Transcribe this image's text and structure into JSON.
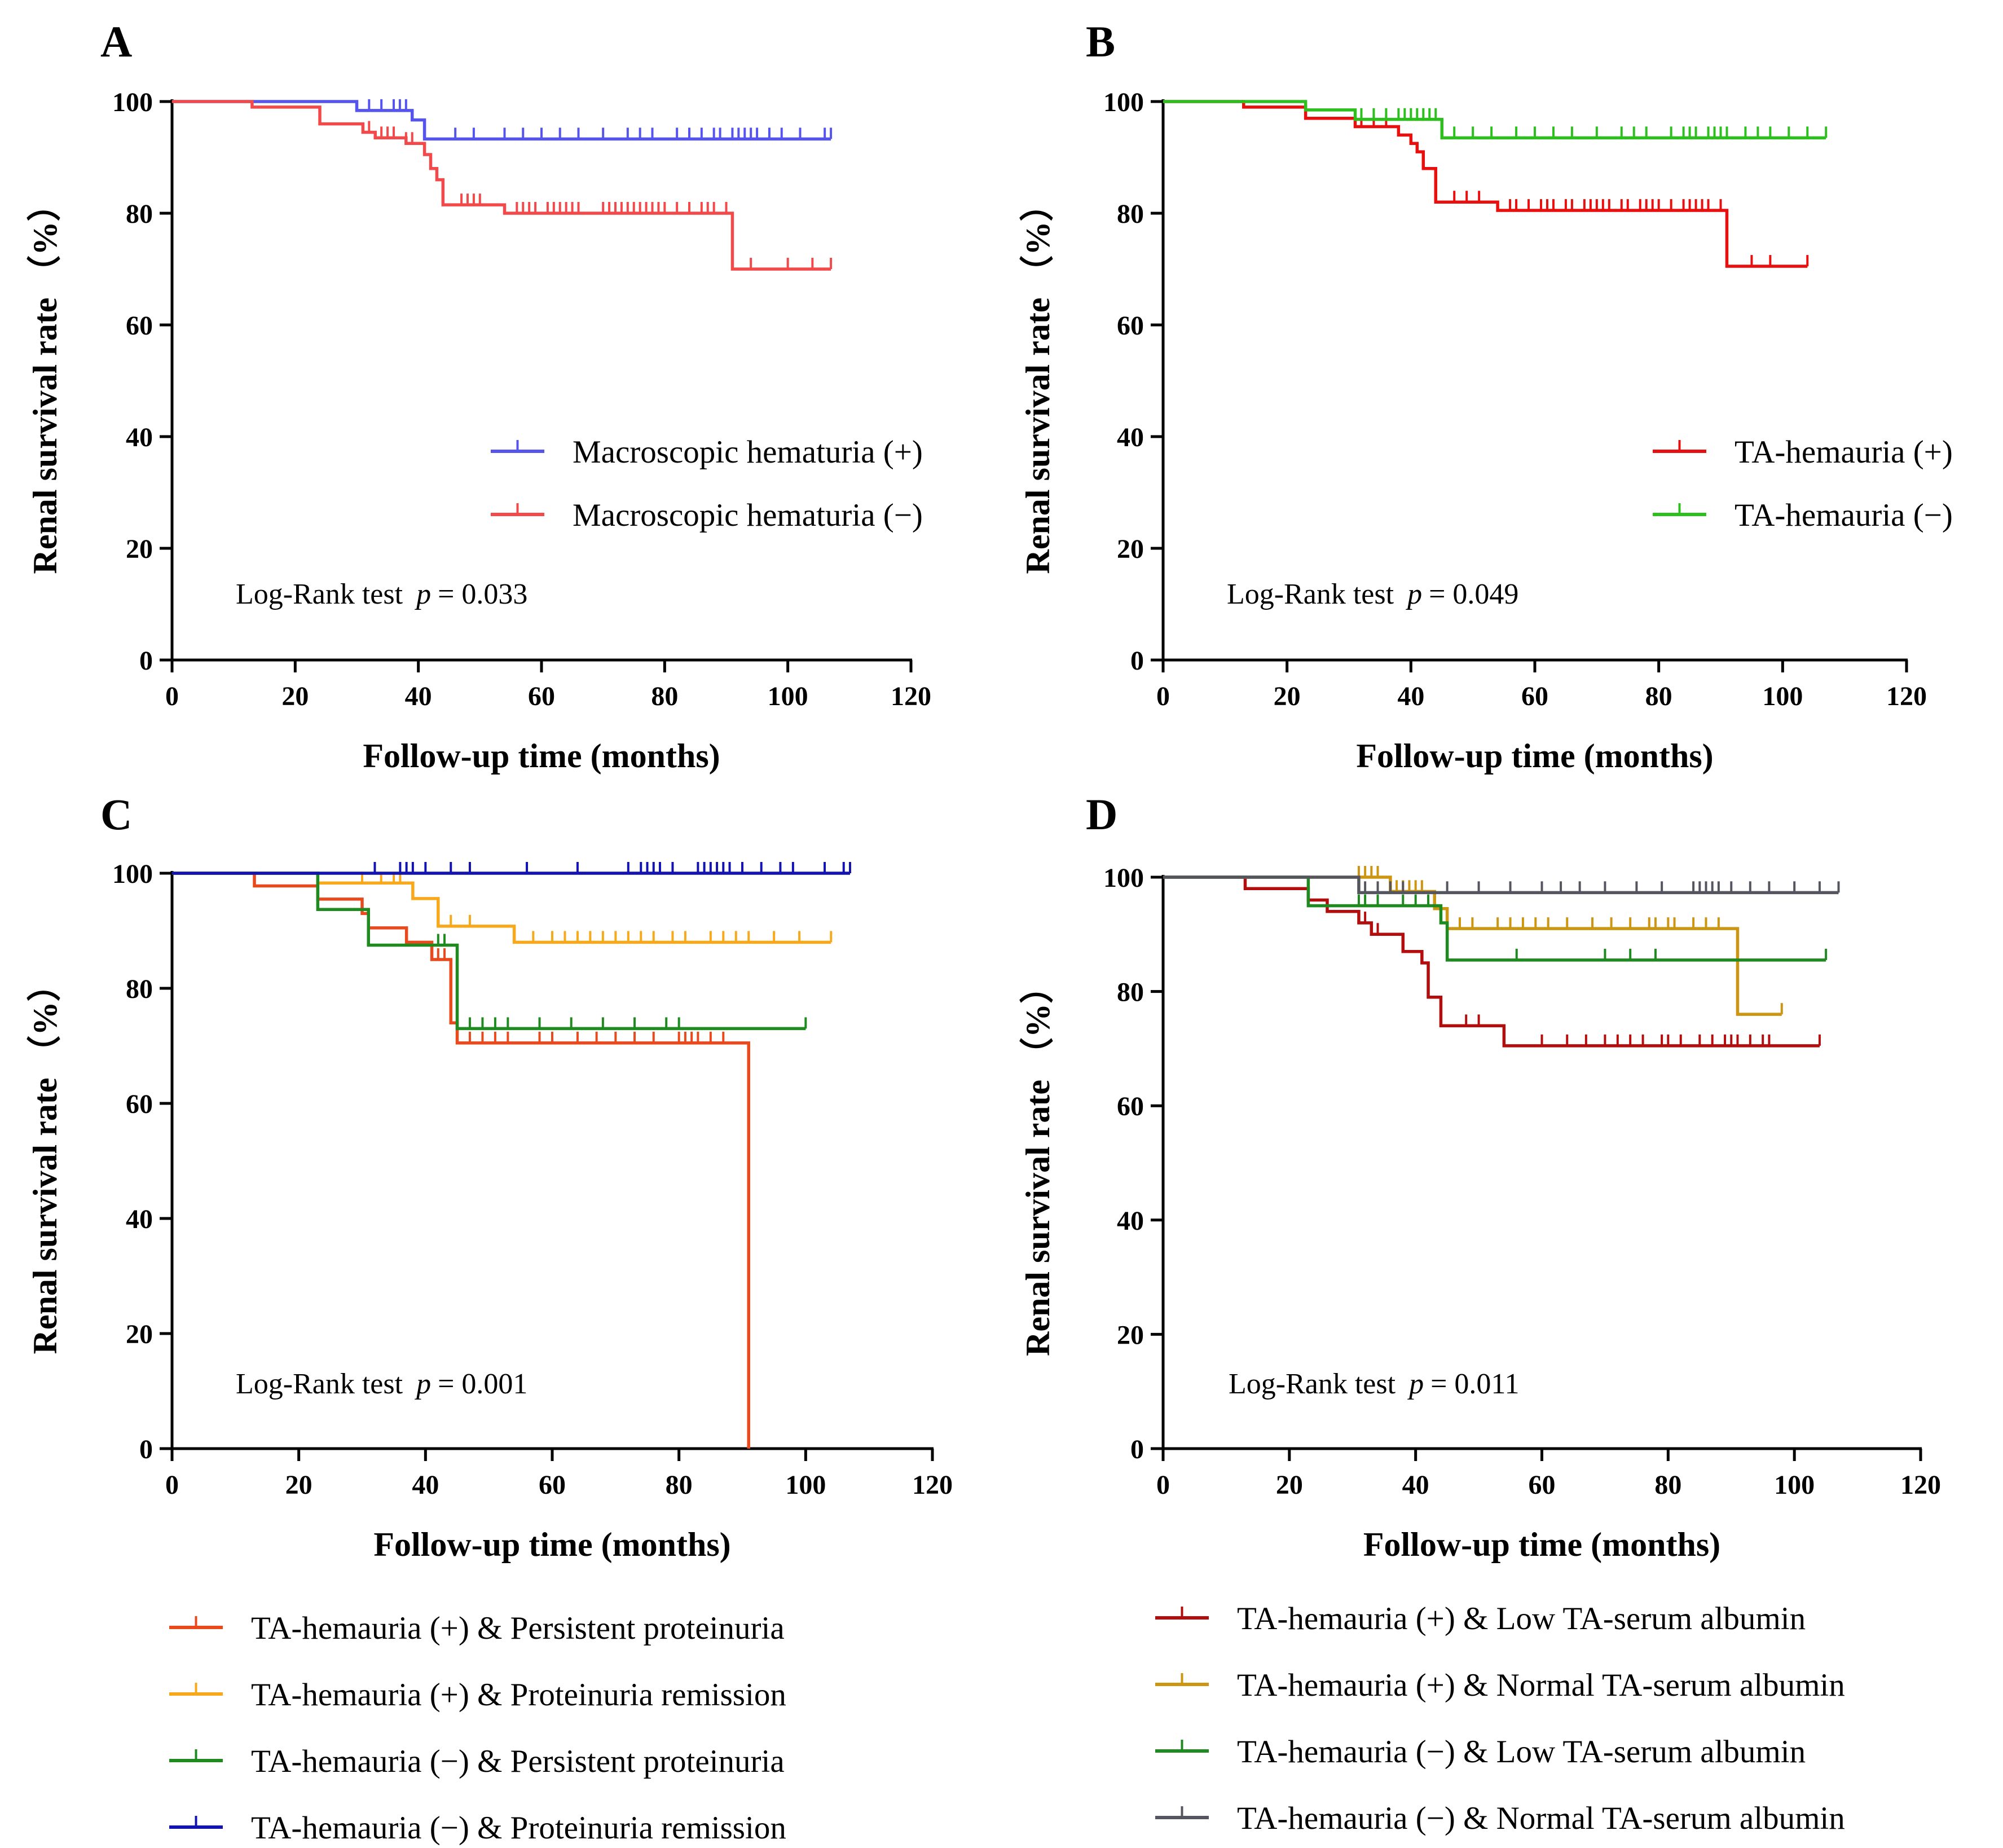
{
  "chart_data": [
    {
      "panel": "A",
      "type": "line",
      "title": "",
      "xlabel": "Follow-up time (months)",
      "ylabel": "Renal survival rate （%）",
      "xlim": [
        0,
        120
      ],
      "ylim": [
        0,
        100
      ],
      "xticks": [
        "0",
        "20",
        "40",
        "60",
        "80",
        "100",
        "120"
      ],
      "yticks": [
        "0",
        "20",
        "40",
        "60",
        "80",
        "100"
      ],
      "annotation": {
        "prefix": "Log-Rank test",
        "p_symbol": "p",
        "value": "= 0.033"
      },
      "legend_position": "center-right",
      "series": [
        {
          "name": "Macroscopic hematuria (+)",
          "color": "#5555ee",
          "steps": [
            [
              0,
              100
            ],
            [
              30,
              98.4
            ],
            [
              39,
              96.7
            ],
            [
              41,
              93.3
            ],
            [
              107,
              93.3
            ]
          ],
          "censors": [
            32,
            34,
            36,
            37,
            38,
            46,
            49,
            54,
            57,
            60,
            63,
            66,
            70,
            74,
            76,
            78,
            82,
            84,
            86,
            88,
            89,
            91,
            92,
            93,
            94,
            95,
            97,
            99,
            102,
            106,
            107
          ]
        },
        {
          "name": "Macroscopic hematuria (−)",
          "color": "#f24a4a",
          "steps": [
            [
              0,
              100
            ],
            [
              13,
              99
            ],
            [
              24,
              96
            ],
            [
              31,
              94.5
            ],
            [
              33,
              93.5
            ],
            [
              38,
              92.5
            ],
            [
              41,
              90.5
            ],
            [
              42,
              88
            ],
            [
              43,
              86
            ],
            [
              44,
              81.5
            ],
            [
              54,
              80
            ],
            [
              91,
              70
            ],
            [
              107,
              70
            ]
          ],
          "censors": [
            32,
            34,
            35,
            36,
            38,
            39,
            47,
            48,
            49,
            50,
            56,
            57,
            58,
            59,
            61,
            62,
            63,
            64,
            65,
            66,
            70,
            71,
            72,
            73,
            74,
            75,
            76,
            77,
            78,
            79,
            80,
            82,
            84,
            86,
            87,
            88,
            90,
            94,
            100,
            104,
            107
          ]
        }
      ]
    },
    {
      "panel": "B",
      "type": "line",
      "title": "",
      "xlabel": "Follow-up time (months)",
      "ylabel": "Renal survival rate （%）",
      "xlim": [
        0,
        120
      ],
      "ylim": [
        0,
        100
      ],
      "xticks": [
        "0",
        "20",
        "40",
        "60",
        "80",
        "100",
        "120"
      ],
      "yticks": [
        "0",
        "20",
        "40",
        "60",
        "80",
        "100"
      ],
      "annotation": {
        "prefix": "Log-Rank test",
        "p_symbol": "p",
        "value": "= 0.049"
      },
      "legend_position": "center-right",
      "series": [
        {
          "name": "TA-hemauria (+)",
          "color": "#e80f0f",
          "steps": [
            [
              0,
              100
            ],
            [
              13,
              99
            ],
            [
              23,
              97
            ],
            [
              31,
              95.5
            ],
            [
              38,
              94
            ],
            [
              40,
              92.5
            ],
            [
              41,
              91
            ],
            [
              42,
              88
            ],
            [
              44,
              82
            ],
            [
              54,
              80.5
            ],
            [
              91,
              70.5
            ],
            [
              104,
              70.5
            ]
          ],
          "censors": [
            32,
            34,
            36,
            47,
            49,
            51,
            56,
            57,
            59,
            61,
            62,
            63,
            65,
            66,
            68,
            69,
            70,
            71,
            72,
            74,
            75,
            77,
            78,
            79,
            80,
            82,
            84,
            85,
            86,
            87,
            88,
            90,
            95,
            98,
            104
          ]
        },
        {
          "name": "TA-hemauria (−)",
          "color": "#2dbf1e",
          "steps": [
            [
              0,
              100
            ],
            [
              23,
              98.5
            ],
            [
              31,
              96.8
            ],
            [
              45,
              93.5
            ],
            [
              107,
              93.5
            ]
          ],
          "censors": [
            32,
            34,
            36,
            38,
            39,
            40,
            41,
            42,
            43,
            44,
            47,
            50,
            53,
            57,
            60,
            63,
            66,
            70,
            74,
            76,
            78,
            82,
            84,
            85,
            86,
            88,
            89,
            90,
            91,
            94,
            96,
            98,
            101,
            104,
            107
          ]
        }
      ]
    },
    {
      "panel": "C",
      "type": "line",
      "title": "",
      "xlabel": "Follow-up time (months)",
      "ylabel": "Renal survival rate （%）",
      "xlim": [
        0,
        120
      ],
      "ylim": [
        0,
        100
      ],
      "xticks": [
        "0",
        "20",
        "40",
        "60",
        "80",
        "100",
        "120"
      ],
      "yticks": [
        "0",
        "20",
        "40",
        "60",
        "80",
        "100"
      ],
      "annotation": {
        "prefix": "Log-Rank test",
        "p_symbol": "p",
        "value": "= 0.001"
      },
      "legend_position": "below",
      "series": [
        {
          "name": "TA-hemauria (+) & Persistent proteinuria",
          "color": "#e84a1e",
          "steps": [
            [
              0,
              100
            ],
            [
              13,
              97.8
            ],
            [
              23,
              95.5
            ],
            [
              30,
              93
            ],
            [
              31,
              90.5
            ],
            [
              37,
              88
            ],
            [
              41,
              85
            ],
            [
              44,
              74
            ],
            [
              45,
              70.5
            ],
            [
              91,
              0
            ]
          ],
          "censors": [
            42,
            43,
            47,
            49,
            51,
            53,
            58,
            60,
            64,
            67,
            70,
            73,
            76,
            80,
            81,
            82,
            83,
            85,
            87
          ]
        },
        {
          "name": "TA-hemauria (+) & Proteinuria remission",
          "color": "#f7a81b",
          "steps": [
            [
              0,
              100
            ],
            [
              23,
              98.3
            ],
            [
              38,
              95.6
            ],
            [
              42,
              90.8
            ],
            [
              54,
              88
            ],
            [
              104,
              88
            ]
          ],
          "censors": [
            30,
            33,
            35,
            36,
            44,
            47,
            57,
            60,
            62,
            64,
            66,
            68,
            70,
            72,
            74,
            76,
            79,
            81,
            85,
            87,
            89,
            91,
            95,
            99,
            104
          ]
        },
        {
          "name": "TA-hemauria (−) & Persistent proteinuria",
          "color": "#1f8a1f",
          "steps": [
            [
              0,
              100
            ],
            [
              23,
              93.7
            ],
            [
              31,
              87.5
            ],
            [
              45,
              73
            ],
            [
              100,
              73
            ]
          ],
          "censors": [
            42,
            43,
            47,
            49,
            51,
            53,
            58,
            63,
            68,
            73,
            78,
            80,
            100
          ]
        },
        {
          "name": "TA-hemauria (−) & Proteinuria remission",
          "color": "#1313b0",
          "steps": [
            [
              0,
              100
            ],
            [
              107,
              100
            ]
          ],
          "censors": [
            32,
            36,
            37,
            38,
            40,
            44,
            47,
            56,
            64,
            72,
            74,
            75,
            76,
            77,
            79,
            83,
            84,
            85,
            86,
            87,
            88,
            90,
            93,
            96,
            98,
            103,
            106,
            107
          ]
        }
      ]
    },
    {
      "panel": "D",
      "type": "line",
      "title": "",
      "xlabel": "Follow-up time (months)",
      "ylabel": "Renal survival rate （%）",
      "xlim": [
        0,
        120
      ],
      "ylim": [
        0,
        100
      ],
      "xticks": [
        "0",
        "20",
        "40",
        "60",
        "80",
        "100",
        "120"
      ],
      "yticks": [
        "0",
        "20",
        "40",
        "60",
        "80",
        "100"
      ],
      "annotation": {
        "prefix": "Log-Rank test",
        "p_symbol": "p",
        "value": "= 0.011"
      },
      "legend_position": "below",
      "series": [
        {
          "name": "TA-hemauria (+) & Low TA-serum albumin",
          "color": "#b30e0e",
          "steps": [
            [
              0,
              100
            ],
            [
              13,
              98
            ],
            [
              23,
              96
            ],
            [
              26,
              94
            ],
            [
              31,
              92
            ],
            [
              33,
              90
            ],
            [
              38,
              87
            ],
            [
              41,
              85
            ],
            [
              42,
              79
            ],
            [
              44,
              74
            ],
            [
              54,
              70.5
            ],
            [
              104,
              70.5
            ]
          ],
          "censors": [
            31,
            32,
            34,
            48,
            50,
            60,
            64,
            67,
            70,
            72,
            74,
            76,
            79,
            80,
            82,
            85,
            87,
            89,
            90,
            91,
            93,
            95,
            96,
            104
          ]
        },
        {
          "name": "TA-hemauria (+) & Normal TA-serum albumin",
          "color": "#cc9512",
          "steps": [
            [
              0,
              100
            ],
            [
              36,
              97.5
            ],
            [
              43,
              94.5
            ],
            [
              45,
              91
            ],
            [
              91,
              76
            ],
            [
              98,
              76
            ]
          ],
          "censors": [
            31,
            32,
            33,
            34,
            36,
            37,
            38,
            39,
            40,
            41,
            47,
            49,
            53,
            55,
            57,
            59,
            61,
            64,
            68,
            71,
            74,
            77,
            78,
            80,
            81,
            84,
            86,
            88,
            98
          ]
        },
        {
          "name": "TA-hemauria (−) & Low TA-serum albumin",
          "color": "#1f8a1f",
          "steps": [
            [
              0,
              100
            ],
            [
              23,
              95
            ],
            [
              44,
              92
            ],
            [
              45,
              85.5
            ],
            [
              105,
              85.5
            ]
          ],
          "censors": [
            31,
            32,
            34,
            38,
            40,
            42,
            56,
            70,
            74,
            78,
            105
          ]
        },
        {
          "name": "TA-hemauria (−) & Normal TA-serum albumin",
          "color": "#555560",
          "steps": [
            [
              0,
              100
            ],
            [
              31,
              97.3
            ],
            [
              107,
              97.3
            ]
          ],
          "censors": [
            31,
            32,
            34,
            36,
            38,
            45,
            50,
            55,
            60,
            63,
            66,
            70,
            75,
            79,
            84,
            85,
            86,
            87,
            88,
            90,
            93,
            96,
            100,
            104,
            107
          ]
        }
      ]
    }
  ]
}
